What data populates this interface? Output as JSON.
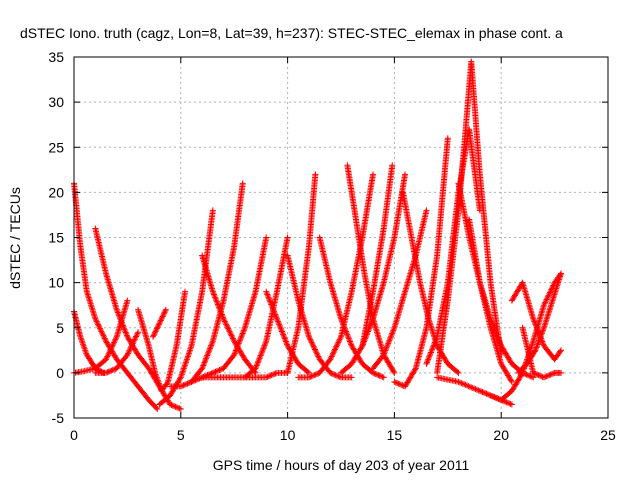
{
  "chart_data": {
    "type": "scatter",
    "title": "dSTEC Iono. truth (cagz, Lon=8, Lat=39, h=237): STEC-STEC_elemax in phase cont. a",
    "xlabel": "GPS time / hours of day 203 of year 2011",
    "ylabel": "dSTEC  / TECUs",
    "xlim": [
      0,
      25
    ],
    "ylim": [
      -5,
      35
    ],
    "xticks": [
      0,
      5,
      10,
      15,
      20,
      25
    ],
    "yticks": [
      -5,
      0,
      5,
      10,
      15,
      20,
      25,
      30,
      35
    ],
    "xtick_labels": [
      "0",
      "5",
      "10",
      "15",
      "20",
      "25"
    ],
    "ytick_labels": [
      "-5",
      "0",
      "5",
      "10",
      "15",
      "20",
      "25",
      "30",
      "35"
    ],
    "grid": true,
    "marker": "+",
    "marker_color": "#ff0000",
    "series": [
      {
        "x": [
          0.0,
          0.3,
          0.6,
          1.0,
          1.5,
          2.0,
          2.5,
          3.0,
          3.5,
          3.9
        ],
        "y": [
          21.0,
          14.0,
          9.0,
          6.0,
          3.5,
          1.5,
          0.0,
          -1.5,
          -3.0,
          -4.0
        ]
      },
      {
        "x": [
          0.0,
          0.3,
          0.6,
          1.0,
          1.4
        ],
        "y": [
          6.8,
          4.0,
          2.0,
          0.5,
          0.0
        ]
      },
      {
        "x": [
          0.0,
          0.5,
          1.0,
          1.5,
          2.0,
          2.5
        ],
        "y": [
          0.0,
          0.2,
          0.5,
          1.5,
          4.0,
          8.0
        ]
      },
      {
        "x": [
          1.0,
          1.5,
          2.0,
          2.5,
          3.0,
          3.5,
          4.0,
          4.5,
          5.0
        ],
        "y": [
          16.0,
          11.0,
          7.0,
          4.0,
          2.0,
          0.5,
          -1.5,
          -3.5,
          -4.0
        ]
      },
      {
        "x": [
          1.0,
          1.5,
          2.0,
          2.5,
          3.0
        ],
        "y": [
          0.0,
          0.0,
          0.5,
          2.0,
          4.5
        ]
      },
      {
        "x": [
          3.0,
          3.5,
          3.8,
          4.1,
          4.4,
          4.8,
          5.2
        ],
        "y": [
          7.0,
          3.0,
          0.0,
          -2.0,
          -1.0,
          3.0,
          9.0
        ]
      },
      {
        "x": [
          3.7,
          4.0,
          4.3
        ],
        "y": [
          4.0,
          5.5,
          7.0
        ]
      },
      {
        "x": [
          4.0,
          4.5,
          5.0,
          5.5,
          6.0,
          6.5
        ],
        "y": [
          -3.5,
          -2.5,
          -0.5,
          3.0,
          9.0,
          18.0
        ]
      },
      {
        "x": [
          4.5,
          5.0,
          5.5,
          6.0,
          6.5,
          7.0,
          7.5,
          7.9
        ],
        "y": [
          -1.5,
          -1.5,
          -1.0,
          0.5,
          3.5,
          8.0,
          14.0,
          21.0
        ]
      },
      {
        "x": [
          5.5,
          6.0,
          6.5,
          7.0,
          7.5,
          8.0,
          8.5,
          9.0
        ],
        "y": [
          -1.0,
          -0.5,
          0.0,
          0.5,
          2.0,
          5.0,
          9.0,
          15.0
        ]
      },
      {
        "x": [
          6.0,
          7.0,
          8.0,
          9.0,
          9.5,
          10.0
        ],
        "y": [
          -0.5,
          -0.5,
          -0.5,
          -0.5,
          0.0,
          0.0
        ]
      },
      {
        "x": [
          6.0,
          6.5,
          7.0,
          7.5,
          8.0,
          8.5
        ],
        "y": [
          13.0,
          9.0,
          6.0,
          3.5,
          1.5,
          0.0
        ]
      },
      {
        "x": [
          8.0,
          8.5,
          9.0,
          9.5,
          10.0
        ],
        "y": [
          -0.5,
          0.5,
          3.5,
          9.0,
          15.0
        ]
      },
      {
        "x": [
          9.0,
          9.5,
          10.0,
          10.5,
          11.0
        ],
        "y": [
          9.0,
          6.0,
          3.0,
          1.0,
          0.0
        ]
      },
      {
        "x": [
          10.0,
          10.5,
          11.0,
          11.5,
          12.0,
          12.5,
          13.0
        ],
        "y": [
          13.0,
          8.0,
          4.0,
          1.5,
          0.0,
          -0.5,
          -0.5
        ]
      },
      {
        "x": [
          10.0,
          10.5,
          11.0,
          11.3
        ],
        "y": [
          0.0,
          5.0,
          14.0,
          22.0
        ]
      },
      {
        "x": [
          10.5,
          11.0,
          11.5,
          12.0,
          12.5,
          13.0,
          13.5,
          14.0
        ],
        "y": [
          -0.5,
          -0.5,
          0.0,
          1.5,
          4.0,
          9.0,
          15.0,
          22.0
        ]
      },
      {
        "x": [
          11.5,
          12.0,
          12.5,
          13.0,
          13.5,
          14.0,
          14.5
        ],
        "y": [
          15.0,
          10.0,
          6.0,
          3.0,
          1.0,
          0.0,
          -0.5
        ]
      },
      {
        "x": [
          12.5,
          13.0,
          13.5,
          14.0,
          14.5,
          15.0,
          15.5
        ],
        "y": [
          0.0,
          1.0,
          3.0,
          6.0,
          10.0,
          15.0,
          22.0
        ]
      },
      {
        "x": [
          12.8,
          13.2,
          13.6,
          14.0,
          14.5,
          15.0
        ],
        "y": [
          23.0,
          17.0,
          11.0,
          6.0,
          2.0,
          0.0
        ]
      },
      {
        "x": [
          13.5,
          14.0,
          14.5,
          14.9
        ],
        "y": [
          3.0,
          9.0,
          16.0,
          23.0
        ]
      },
      {
        "x": [
          14.0,
          14.5,
          15.0,
          15.5,
          16.0,
          16.5
        ],
        "y": [
          0.5,
          2.0,
          5.0,
          9.0,
          13.0,
          18.0
        ]
      },
      {
        "x": [
          15.4,
          15.8,
          16.2,
          16.6,
          17.0,
          17.5,
          18.0
        ],
        "y": [
          20.0,
          15.0,
          10.0,
          6.0,
          3.0,
          1.0,
          0.0
        ]
      },
      {
        "x": [
          15.0,
          15.5,
          16.0,
          16.5,
          17.0,
          17.5
        ],
        "y": [
          -1.0,
          -1.5,
          0.5,
          5.0,
          13.0,
          26.0
        ]
      },
      {
        "x": [
          16.5,
          17.0,
          17.5,
          18.0,
          18.5,
          19.0
        ],
        "y": [
          1.0,
          4.0,
          10.0,
          20.0,
          27.0,
          18.0
        ]
      },
      {
        "x": [
          17.0,
          17.5,
          18.0,
          18.3,
          18.6,
          19.0,
          19.5,
          20.0
        ],
        "y": [
          0.0,
          8.0,
          18.0,
          26.0,
          34.5,
          22.0,
          10.0,
          2.0
        ]
      },
      {
        "x": [
          17.0,
          18.0,
          19.0,
          19.5,
          20.0,
          20.5
        ],
        "y": [
          -0.5,
          -1.0,
          -2.0,
          -2.5,
          -3.0,
          -3.5
        ]
      },
      {
        "x": [
          18.0,
          18.5,
          19.0,
          19.5,
          20.0,
          20.5,
          21.0,
          21.5
        ],
        "y": [
          21.0,
          15.0,
          10.0,
          6.0,
          3.0,
          1.0,
          0.0,
          -0.5
        ]
      },
      {
        "x": [
          18.5,
          19.0,
          19.5,
          20.0,
          20.5
        ],
        "y": [
          17.0,
          10.0,
          5.0,
          1.0,
          -1.0
        ]
      },
      {
        "x": [
          19.5,
          20.0,
          20.5,
          21.0,
          21.5,
          22.0,
          22.5,
          22.8
        ],
        "y": [
          -2.5,
          -3.0,
          -2.0,
          0.0,
          3.5,
          7.5,
          10.0,
          11.0
        ]
      },
      {
        "x": [
          20.5,
          21.0,
          21.5,
          22.0,
          22.5,
          22.8
        ],
        "y": [
          8.0,
          10.0,
          6.0,
          3.0,
          1.5,
          2.5
        ]
      },
      {
        "x": [
          21.0,
          21.5,
          22.0,
          22.5,
          22.8
        ],
        "y": [
          5.0,
          0.0,
          -0.5,
          0.0,
          0.0
        ]
      },
      {
        "x": [
          20.8,
          21.2,
          21.6,
          22.0,
          22.4,
          22.8
        ],
        "y": [
          0.0,
          1.0,
          2.5,
          5.0,
          8.0,
          11.0
        ]
      }
    ]
  }
}
